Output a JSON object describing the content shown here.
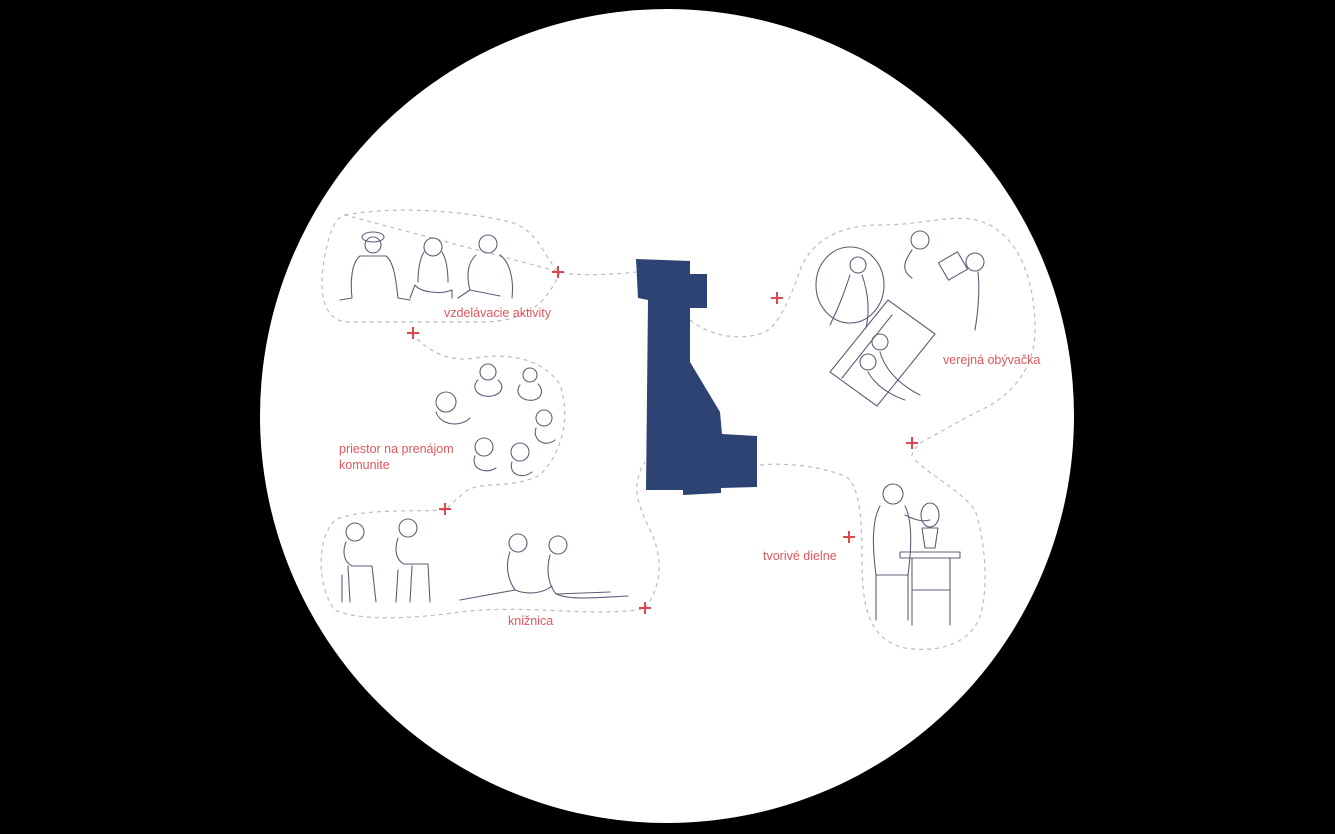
{
  "zones": [
    {
      "id": "educational",
      "label": "vzdelávacie aktivity"
    },
    {
      "id": "rental",
      "label_lines": [
        "priestor na prenájom",
        "komunite"
      ]
    },
    {
      "id": "library",
      "label": "knižnica"
    },
    {
      "id": "living-room",
      "label": "verejná obývačka"
    },
    {
      "id": "workshops",
      "label": "tvorivé dielne"
    }
  ],
  "colors": {
    "background": "#000000",
    "circle": "#ffffff",
    "building": "#2d4373",
    "accent": "#e0454b",
    "label": "#e0575c",
    "line_art": "#5c6078",
    "dashed_path": "#b9bcc4"
  },
  "icons": [
    "plus-icon",
    "people-sketch-illustration",
    "building-footprint"
  ]
}
